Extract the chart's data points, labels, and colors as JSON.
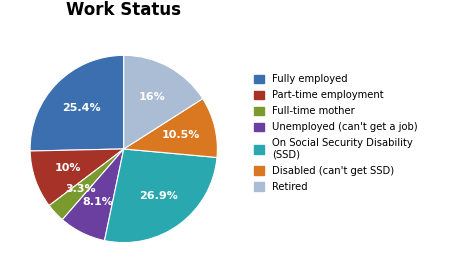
{
  "title": "Work Status",
  "labels": [
    "Fully employed",
    "Part-time employment",
    "Full-time mother",
    "Unemployed (can't get a job)",
    "On Social Security Disability\n(SSD)",
    "Disabled (can't get SSD)",
    "Retired"
  ],
  "values": [
    25.4,
    10.0,
    3.3,
    8.1,
    26.9,
    10.5,
    16.0
  ],
  "pct_labels": [
    "25.4%",
    "10%",
    "3.3%",
    "8.1%",
    "26.9%",
    "10.5%",
    "16%"
  ],
  "colors": [
    "#3B6FAF",
    "#A63228",
    "#7A9A2E",
    "#6B3FA0",
    "#29A8B0",
    "#D97820",
    "#AABDD4"
  ],
  "background_color": "#ffffff",
  "title_fontsize": 12,
  "pct_fontsize": 8,
  "startangle": 90
}
